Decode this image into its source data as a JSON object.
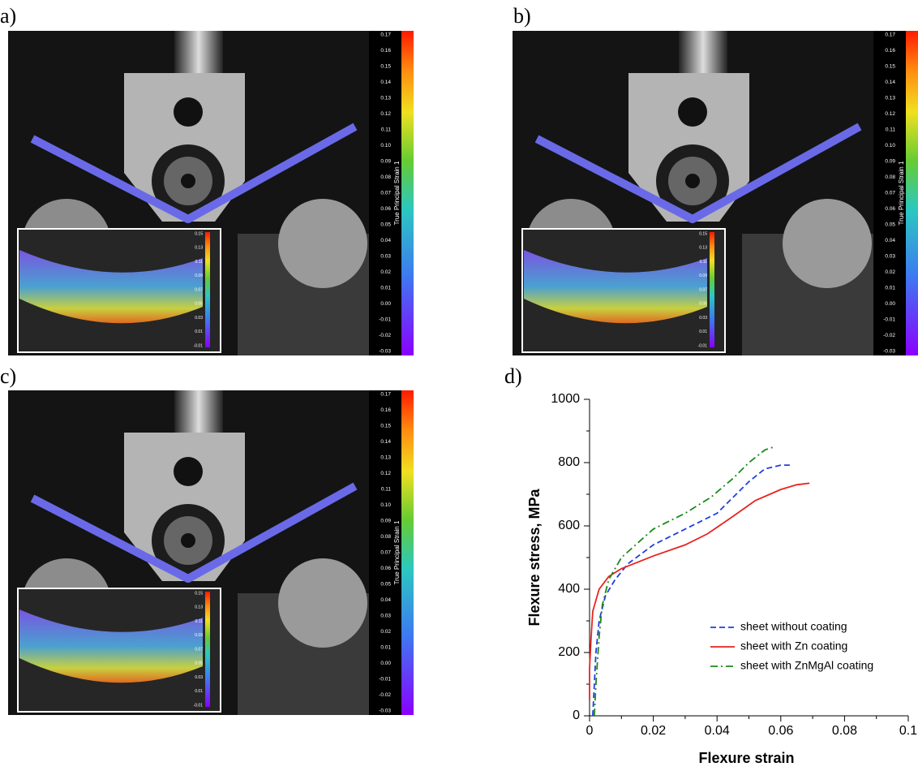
{
  "panel_labels": [
    "a)",
    "b)",
    "c)",
    "d)"
  ],
  "colorbar": {
    "title": "True Principal Strain 1",
    "ticks": [
      "0.17",
      "0.16",
      "0.15",
      "0.14",
      "0.13",
      "0.12",
      "0.11",
      "0.10",
      "0.09",
      "0.08",
      "0.07",
      "0.06",
      "0.05",
      "0.04",
      "0.03",
      "0.02",
      "0.01",
      "0.00",
      "-0.01",
      "-0.02",
      "-0.03"
    ]
  },
  "inset_colorbar": {
    "ticks": [
      "0.15",
      "0.13",
      "0.11",
      "0.09",
      "0.07",
      "0.05",
      "0.03",
      "0.01",
      "-0.01"
    ]
  },
  "chart_data": {
    "type": "line",
    "xlabel": "Flexure strain",
    "ylabel": "Flexure stress, MPa",
    "xlim": [
      0,
      0.1
    ],
    "xticks": [
      0,
      0.02,
      0.04,
      0.06,
      0.08,
      0.1
    ],
    "ylim": [
      0,
      1000
    ],
    "yticks": [
      0,
      200,
      400,
      600,
      800,
      1000
    ],
    "series": [
      {
        "name": "sheet without coating",
        "color": "#1f3fe0",
        "linestyle": "dashed",
        "x": [
          0.001,
          0.0015,
          0.002,
          0.003,
          0.005,
          0.008,
          0.012,
          0.02,
          0.03,
          0.04,
          0.045,
          0.05,
          0.055,
          0.06,
          0.063
        ],
        "values": [
          0,
          100,
          200,
          300,
          380,
          430,
          480,
          540,
          590,
          640,
          690,
          740,
          780,
          792,
          792
        ]
      },
      {
        "name": "sheet with Zn coating",
        "color": "#e8231f",
        "linestyle": "solid",
        "x": [
          0,
          0,
          0.0005,
          0.001,
          0.003,
          0.006,
          0.01,
          0.02,
          0.03,
          0.037,
          0.045,
          0.052,
          0.06,
          0.065,
          0.069
        ],
        "values": [
          50,
          150,
          250,
          330,
          400,
          440,
          465,
          505,
          540,
          575,
          630,
          680,
          715,
          730,
          735
        ]
      },
      {
        "name": "sheet with ZnMgAl coating",
        "color": "#1a8a1a",
        "linestyle": "dashdot",
        "x": [
          0.0015,
          0.002,
          0.003,
          0.004,
          0.006,
          0.01,
          0.02,
          0.03,
          0.038,
          0.045,
          0.05,
          0.055,
          0.058
        ],
        "values": [
          0,
          100,
          250,
          350,
          430,
          500,
          590,
          640,
          690,
          750,
          800,
          840,
          850
        ]
      }
    ]
  }
}
